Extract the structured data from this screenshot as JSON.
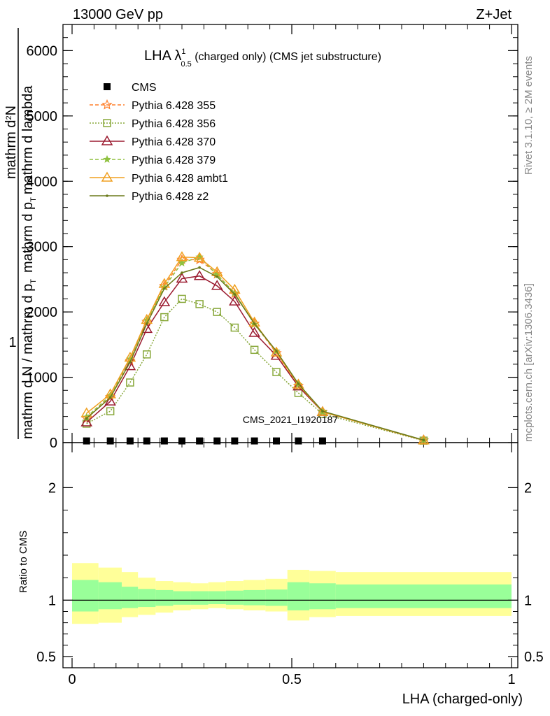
{
  "header": {
    "left": "13000 GeV pp",
    "right": "Z+Jet"
  },
  "side_labels": {
    "rivet": "Rivet 3.1.10, ≥ 2M events",
    "mcplots": "mcplots.cern.ch [arXiv:1306.3436]"
  },
  "watermark": "CMS_2021_I1920187",
  "title": {
    "main": "LHA λ",
    "sup": "1",
    "sub": "0.5",
    "rest": " (charged only) (CMS jet substructure)"
  },
  "ylabel": {
    "one": "1",
    "den": "mathrm d N / mathrm d p_T",
    "num_a": "mathrm d",
    "num_b": "N",
    "num_c": "mathrm d p",
    "num_d": "T",
    "num_e": "mathrm d lambda",
    "den_a": "mathrm d N / mathrm d p",
    "den_b": "T",
    "num_top": "mathrm d",
    "num_top_sup": "2",
    "num_top_b": "N",
    "num_top_c": "mathrm d p",
    "num_top_d": "T",
    "num_top_e": "mathrm d lambda"
  },
  "ratio_ylabel": "Ratio to CMS",
  "xlabel": "LHA (charged-only)",
  "colors": {
    "cms": "#000000",
    "p355": "#ff7f2a",
    "p356": "#88a83a",
    "p370": "#9b1b30",
    "p379": "#8fc13f",
    "ambt1": "#f0a020",
    "z2": "#6b7a1b",
    "band_outer": "#ffff99",
    "band_inner": "#99ff99"
  },
  "chart_data": {
    "type": "line",
    "x_ticks": [
      "0",
      "0.5",
      "1"
    ],
    "y_ticks": [
      "0",
      "1000",
      "2000",
      "3000",
      "4000",
      "5000",
      "6000"
    ],
    "ratio_ticks": [
      "0.5",
      "1",
      "2"
    ],
    "xlim": [
      0,
      1
    ],
    "ylim": [
      0,
      6400
    ],
    "ratio_ylim": [
      0.4,
      2.4
    ],
    "x": [
      0.033,
      0.087,
      0.132,
      0.17,
      0.21,
      0.25,
      0.29,
      0.33,
      0.37,
      0.415,
      0.465,
      0.515,
      0.57,
      0.8
    ],
    "series": [
      {
        "name": "CMS",
        "color_key": "cms",
        "marker": "square-filled",
        "style": "none",
        "values": [
          15,
          15,
          15,
          15,
          15,
          15,
          15,
          15,
          15,
          15,
          15,
          15,
          15,
          null
        ]
      },
      {
        "name": "Pythia 6.428 355",
        "color_key": "p355",
        "marker": "star",
        "style": "dashed",
        "values": [
          370,
          700,
          1250,
          1850,
          2400,
          2800,
          2800,
          2580,
          2280,
          1820,
          1370,
          870,
          470,
          35
        ]
      },
      {
        "name": "Pythia 6.428 356",
        "color_key": "p356",
        "marker": "square-open",
        "style": "dotted",
        "values": [
          290,
          480,
          920,
          1350,
          1920,
          2200,
          2120,
          2000,
          1760,
          1420,
          1080,
          760,
          440,
          30
        ]
      },
      {
        "name": "Pythia 6.428 370",
        "color_key": "p370",
        "marker": "triangle-open",
        "style": "solid",
        "values": [
          310,
          630,
          1170,
          1740,
          2150,
          2510,
          2550,
          2400,
          2160,
          1680,
          1330,
          860,
          470,
          35
        ]
      },
      {
        "name": "Pythia 6.428 379",
        "color_key": "p379",
        "marker": "star-small",
        "style": "dashed",
        "values": [
          390,
          720,
          1280,
          1870,
          2380,
          2750,
          2840,
          2570,
          2290,
          1810,
          1400,
          890,
          470,
          35
        ]
      },
      {
        "name": "Pythia 6.428 ambt1",
        "color_key": "ambt1",
        "marker": "triangle-open",
        "style": "solid",
        "values": [
          450,
          740,
          1300,
          1880,
          2430,
          2840,
          2830,
          2610,
          2340,
          1840,
          1380,
          890,
          470,
          35
        ]
      },
      {
        "name": "Pythia 6.428 z2",
        "color_key": "z2",
        "marker": "dot",
        "style": "solid",
        "values": [
          370,
          690,
          1230,
          1820,
          2360,
          2600,
          2680,
          2540,
          2270,
          1820,
          1400,
          900,
          480,
          38
        ]
      }
    ],
    "ratio_band": {
      "edges": [
        0.0,
        0.06,
        0.113,
        0.15,
        0.19,
        0.23,
        0.27,
        0.31,
        0.35,
        0.39,
        0.44,
        0.49,
        0.54,
        0.6,
        1.0
      ],
      "outer_lo": [
        0.79,
        0.8,
        0.85,
        0.87,
        0.89,
        0.91,
        0.92,
        0.93,
        0.92,
        0.91,
        0.9,
        0.82,
        0.85,
        0.86
      ],
      "outer_hi": [
        1.33,
        1.29,
        1.25,
        1.2,
        1.17,
        1.16,
        1.15,
        1.16,
        1.17,
        1.18,
        1.19,
        1.27,
        1.26,
        1.25
      ],
      "inner_lo": [
        0.9,
        0.92,
        0.93,
        0.94,
        0.95,
        0.96,
        0.96,
        0.965,
        0.96,
        0.955,
        0.95,
        0.91,
        0.92,
        0.93
      ],
      "inner_hi": [
        1.18,
        1.16,
        1.12,
        1.1,
        1.09,
        1.08,
        1.08,
        1.08,
        1.085,
        1.09,
        1.095,
        1.16,
        1.15,
        1.14
      ]
    }
  }
}
